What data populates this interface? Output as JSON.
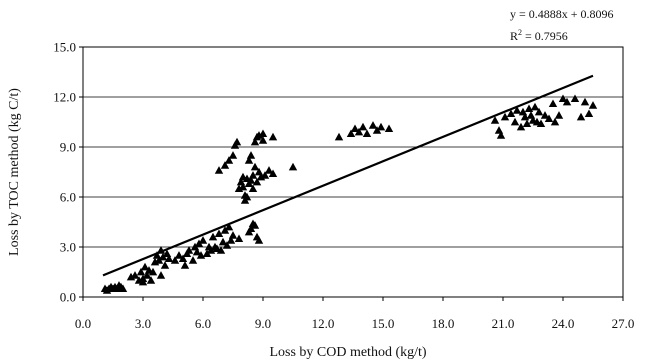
{
  "chart_data": {
    "type": "scatter",
    "title": "",
    "xlabel": "Loss by COD method (kg/t)",
    "ylabel": "Loss by TOC method (kg C/t)",
    "xlim": [
      0,
      27
    ],
    "ylim": [
      0,
      15
    ],
    "x_ticks": [
      "0.0",
      "3.0",
      "6.0",
      "9.0",
      "12.0",
      "15.0",
      "18.0",
      "21.0",
      "24.0",
      "27.0"
    ],
    "y_ticks": [
      "0.0",
      "3.0",
      "6.0",
      "9.0",
      "12.0",
      "15.0"
    ],
    "grid": "horizontal",
    "marker": "triangle",
    "marker_color": "#000000",
    "trendline": {
      "slope": 0.4888,
      "intercept": 0.8096,
      "x_range": [
        1.0,
        25.5
      ],
      "equation": "y = 0.4888x + 0.8096",
      "r2_prefix": "R",
      "r2_exp": "2",
      "r2_value": " = 0.7956"
    },
    "points": [
      [
        1.1,
        0.5
      ],
      [
        1.3,
        0.5
      ],
      [
        1.4,
        0.6
      ],
      [
        1.5,
        0.5
      ],
      [
        1.6,
        0.6
      ],
      [
        1.7,
        0.5
      ],
      [
        1.8,
        0.7
      ],
      [
        1.9,
        0.6
      ],
      [
        2.0,
        0.5
      ],
      [
        1.2,
        0.4
      ],
      [
        2.4,
        1.2
      ],
      [
        2.6,
        1.3
      ],
      [
        2.8,
        1.0
      ],
      [
        2.9,
        1.5
      ],
      [
        3.0,
        1.1
      ],
      [
        3.1,
        1.8
      ],
      [
        3.2,
        1.3
      ],
      [
        3.3,
        1.6
      ],
      [
        3.4,
        1.0
      ],
      [
        3.0,
        0.9
      ],
      [
        3.6,
        2.1
      ],
      [
        3.7,
        2.5
      ],
      [
        3.8,
        2.2
      ],
      [
        3.9,
        2.8
      ],
      [
        4.0,
        2.4
      ],
      [
        4.2,
        2.6
      ],
      [
        4.1,
        1.9
      ],
      [
        4.3,
        2.3
      ],
      [
        3.9,
        1.3
      ],
      [
        3.5,
        1.5
      ],
      [
        4.6,
        2.2
      ],
      [
        4.8,
        2.5
      ],
      [
        5.0,
        2.3
      ],
      [
        5.1,
        1.9
      ],
      [
        5.2,
        2.6
      ],
      [
        5.3,
        2.8
      ],
      [
        5.5,
        2.2
      ],
      [
        5.6,
        3.0
      ],
      [
        5.7,
        2.7
      ],
      [
        5.8,
        3.2
      ],
      [
        5.9,
        2.5
      ],
      [
        6.0,
        3.4
      ],
      [
        6.2,
        2.6
      ],
      [
        6.3,
        3.0
      ],
      [
        6.4,
        2.8
      ],
      [
        6.5,
        3.6
      ],
      [
        6.6,
        3.0
      ],
      [
        6.7,
        2.9
      ],
      [
        6.8,
        3.8
      ],
      [
        6.9,
        2.8
      ],
      [
        7.0,
        3.3
      ],
      [
        7.1,
        4.0
      ],
      [
        7.2,
        3.1
      ],
      [
        7.3,
        4.2
      ],
      [
        7.4,
        3.4
      ],
      [
        7.5,
        3.7
      ],
      [
        7.8,
        3.5
      ],
      [
        8.3,
        3.9
      ],
      [
        8.6,
        4.3
      ],
      [
        8.7,
        3.6
      ],
      [
        8.8,
        3.4
      ],
      [
        8.5,
        4.4
      ],
      [
        8.4,
        4.1
      ],
      [
        6.8,
        7.6
      ],
      [
        7.1,
        7.9
      ],
      [
        7.3,
        8.2
      ],
      [
        7.5,
        8.5
      ],
      [
        7.6,
        9.1
      ],
      [
        7.7,
        9.3
      ],
      [
        7.8,
        6.5
      ],
      [
        7.9,
        6.9
      ],
      [
        8.0,
        7.2
      ],
      [
        8.0,
        6.6
      ],
      [
        8.1,
        6.1
      ],
      [
        8.1,
        5.8
      ],
      [
        8.2,
        6.0
      ],
      [
        8.2,
        7.1
      ],
      [
        8.3,
        8.2
      ],
      [
        8.3,
        6.8
      ],
      [
        8.4,
        7.0
      ],
      [
        8.4,
        8.5
      ],
      [
        8.5,
        7.3
      ],
      [
        8.5,
        6.5
      ],
      [
        8.6,
        9.3
      ],
      [
        8.6,
        7.8
      ],
      [
        8.7,
        6.9
      ],
      [
        8.7,
        9.6
      ],
      [
        8.8,
        9.7
      ],
      [
        8.8,
        7.5
      ],
      [
        8.9,
        7.2
      ],
      [
        9.0,
        9.8
      ],
      [
        9.0,
        9.4
      ],
      [
        9.1,
        7.3
      ],
      [
        9.3,
        7.6
      ],
      [
        9.5,
        9.6
      ],
      [
        9.5,
        7.4
      ],
      [
        10.5,
        7.8
      ],
      [
        12.8,
        9.6
      ],
      [
        13.4,
        9.8
      ],
      [
        13.6,
        10.1
      ],
      [
        13.8,
        9.9
      ],
      [
        14.0,
        10.2
      ],
      [
        14.2,
        9.8
      ],
      [
        14.5,
        10.3
      ],
      [
        14.7,
        10.0
      ],
      [
        14.9,
        10.2
      ],
      [
        15.3,
        10.1
      ],
      [
        20.6,
        10.6
      ],
      [
        20.8,
        10.0
      ],
      [
        20.9,
        9.7
      ],
      [
        21.1,
        10.8
      ],
      [
        21.4,
        11.0
      ],
      [
        21.6,
        10.5
      ],
      [
        21.7,
        11.2
      ],
      [
        21.9,
        10.2
      ],
      [
        22.0,
        11.1
      ],
      [
        22.1,
        10.8
      ],
      [
        22.2,
        10.4
      ],
      [
        22.3,
        11.3
      ],
      [
        22.4,
        10.9
      ],
      [
        22.5,
        10.6
      ],
      [
        22.6,
        11.4
      ],
      [
        22.7,
        10.5
      ],
      [
        22.8,
        11.1
      ],
      [
        22.9,
        10.4
      ],
      [
        23.1,
        10.9
      ],
      [
        23.3,
        10.7
      ],
      [
        23.6,
        10.5
      ],
      [
        23.8,
        10.9
      ],
      [
        24.0,
        11.9
      ],
      [
        24.2,
        11.7
      ],
      [
        24.6,
        11.9
      ],
      [
        24.9,
        10.8
      ],
      [
        25.1,
        11.7
      ],
      [
        25.3,
        11.0
      ],
      [
        25.5,
        11.5
      ],
      [
        23.5,
        11.6
      ]
    ]
  }
}
